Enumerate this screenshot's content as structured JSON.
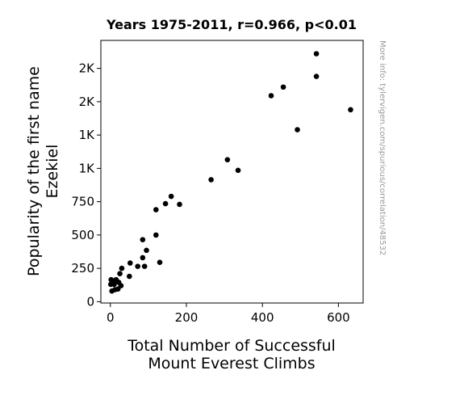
{
  "chart_data": {
    "type": "scatter",
    "title": "Years 1975-2011, r=0.966, p<0.01",
    "xlabel_lines": [
      "Total Number of Successful",
      "Mount Everest Climbs"
    ],
    "ylabel_lines": [
      "Popularity of the first name",
      "Ezekiel"
    ],
    "side_note": "More info: tylervigen.com/spurious/correlation/48532",
    "xlim": [
      -25,
      665
    ],
    "ylim": [
      -10,
      1960
    ],
    "x_ticks": [
      {
        "value": 0,
        "label": "0"
      },
      {
        "value": 200,
        "label": "200"
      },
      {
        "value": 400,
        "label": "400"
      },
      {
        "value": 600,
        "label": "600"
      }
    ],
    "y_ticks": [
      {
        "value": 0,
        "label": "0"
      },
      {
        "value": 250,
        "label": "250"
      },
      {
        "value": 500,
        "label": "500"
      },
      {
        "value": 750,
        "label": "750"
      },
      {
        "value": 1000,
        "label": "1K"
      },
      {
        "value": 1250,
        "label": "1K"
      },
      {
        "value": 1500,
        "label": "2K"
      },
      {
        "value": 1750,
        "label": "2K"
      }
    ],
    "marker_color": "#000000",
    "grid": false,
    "points": [
      {
        "x": 2,
        "y": 165
      },
      {
        "x": 1,
        "y": 130
      },
      {
        "x": 4,
        "y": 80
      },
      {
        "x": 8,
        "y": 155
      },
      {
        "x": 10,
        "y": 130
      },
      {
        "x": 12,
        "y": 90
      },
      {
        "x": 15,
        "y": 165
      },
      {
        "x": 18,
        "y": 150
      },
      {
        "x": 20,
        "y": 95
      },
      {
        "x": 22,
        "y": 145
      },
      {
        "x": 25,
        "y": 210
      },
      {
        "x": 28,
        "y": 120
      },
      {
        "x": 30,
        "y": 250
      },
      {
        "x": 50,
        "y": 190
      },
      {
        "x": 52,
        "y": 290
      },
      {
        "x": 72,
        "y": 265
      },
      {
        "x": 85,
        "y": 330
      },
      {
        "x": 85,
        "y": 465
      },
      {
        "x": 90,
        "y": 265
      },
      {
        "x": 95,
        "y": 385
      },
      {
        "x": 120,
        "y": 690
      },
      {
        "x": 120,
        "y": 500
      },
      {
        "x": 130,
        "y": 295
      },
      {
        "x": 145,
        "y": 735
      },
      {
        "x": 160,
        "y": 790
      },
      {
        "x": 182,
        "y": 730
      },
      {
        "x": 265,
        "y": 915
      },
      {
        "x": 308,
        "y": 1065
      },
      {
        "x": 336,
        "y": 985
      },
      {
        "x": 423,
        "y": 1545
      },
      {
        "x": 455,
        "y": 1610
      },
      {
        "x": 492,
        "y": 1290
      },
      {
        "x": 542,
        "y": 1860
      },
      {
        "x": 542,
        "y": 1690
      },
      {
        "x": 632,
        "y": 1440
      }
    ]
  }
}
